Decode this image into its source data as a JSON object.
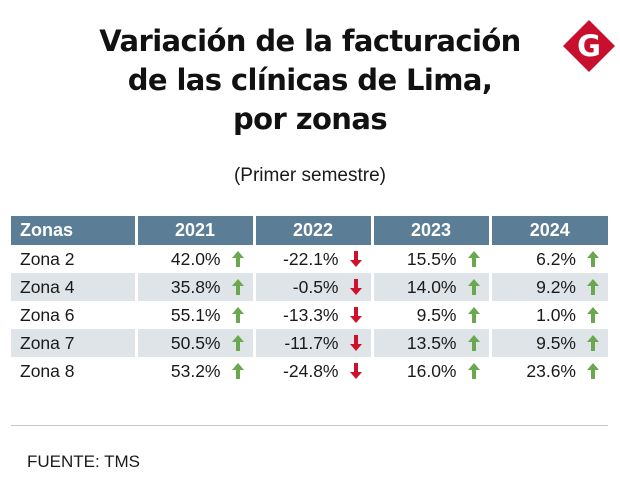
{
  "title_lines": [
    "Variación de la facturación",
    "de las clínicas de Lima,",
    "por zonas"
  ],
  "subtitle": "(Primer semestre)",
  "logo": {
    "letter": "G",
    "color": "#c8102e"
  },
  "colors": {
    "header_bg": "#5b7d95",
    "alt_row": "#dfe4e8",
    "up": "#6aa84f",
    "down": "#d0112b"
  },
  "chart_data": {
    "type": "table",
    "title": "Variación de la facturación de las clínicas de Lima, por zonas",
    "subtitle": "(Primer semestre)",
    "columns": [
      "Zonas",
      "2021",
      "2022",
      "2023",
      "2024"
    ],
    "rows": [
      {
        "zone": "Zona 2",
        "cells": [
          {
            "text": "42.0%",
            "dir": "up"
          },
          {
            "text": "-22.1%",
            "dir": "down"
          },
          {
            "text": "15.5%",
            "dir": "up"
          },
          {
            "text": "6.2%",
            "dir": "up"
          }
        ]
      },
      {
        "zone": "Zona 4",
        "cells": [
          {
            "text": "35.8%",
            "dir": "up"
          },
          {
            "text": "-0.5%",
            "dir": "down"
          },
          {
            "text": "14.0%",
            "dir": "up"
          },
          {
            "text": "9.2%",
            "dir": "up"
          }
        ]
      },
      {
        "zone": "Zona 6",
        "cells": [
          {
            "text": "55.1%",
            "dir": "up"
          },
          {
            "text": "-13.3%",
            "dir": "down"
          },
          {
            "text": "9.5%",
            "dir": "up"
          },
          {
            "text": "1.0%",
            "dir": "up"
          }
        ]
      },
      {
        "zone": "Zona 7",
        "cells": [
          {
            "text": "50.5%",
            "dir": "up"
          },
          {
            "text": "-11.7%",
            "dir": "down"
          },
          {
            "text": "13.5%",
            "dir": "up"
          },
          {
            "text": "9.5%",
            "dir": "up"
          }
        ]
      },
      {
        "zone": "Zona 8",
        "cells": [
          {
            "text": "53.2%",
            "dir": "up"
          },
          {
            "text": "-24.8%",
            "dir": "down"
          },
          {
            "text": "16.0%",
            "dir": "up"
          },
          {
            "text": "23.6%",
            "dir": "up"
          }
        ]
      }
    ]
  },
  "source": "FUENTE: TMS"
}
